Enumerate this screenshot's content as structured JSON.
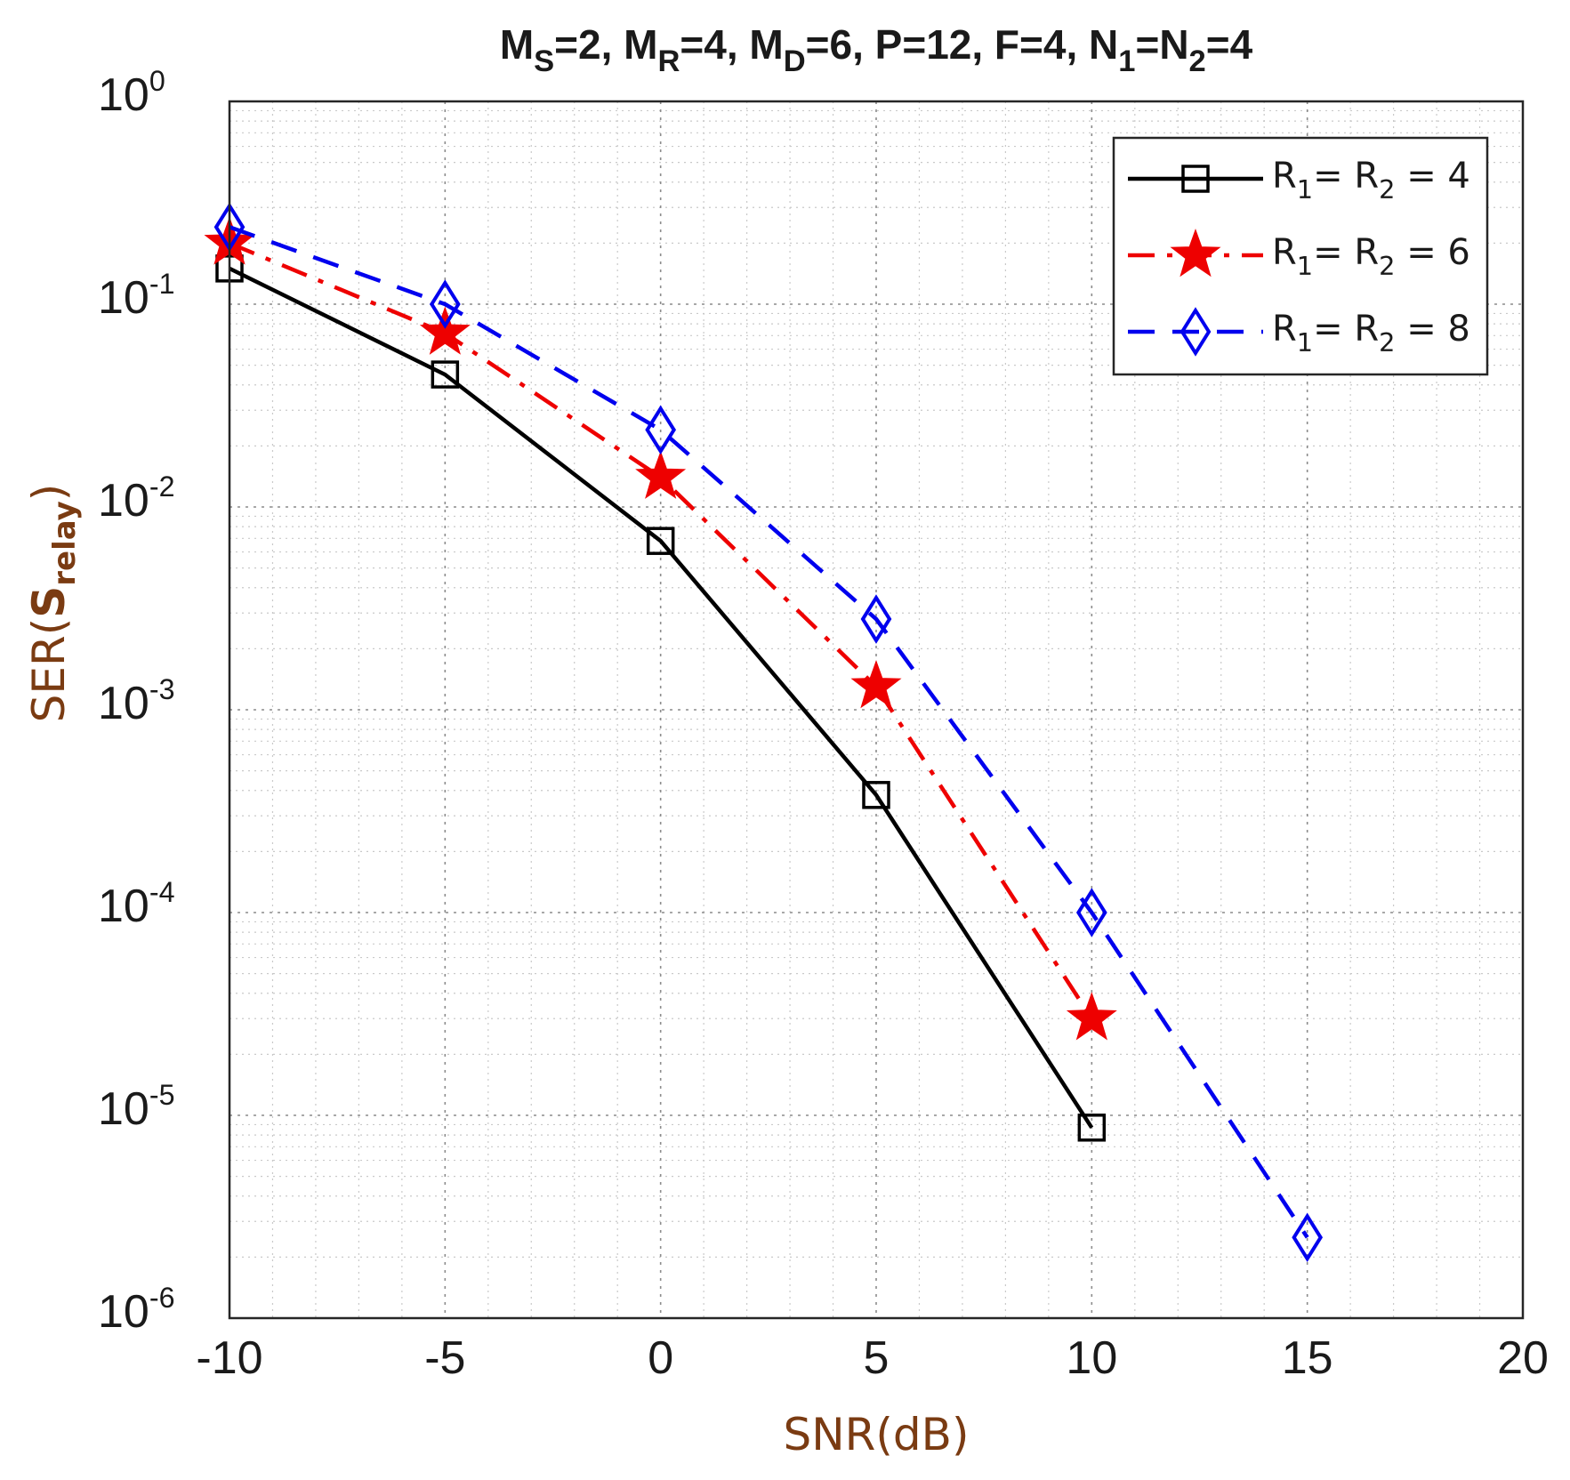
{
  "chart_data": {
    "type": "line",
    "title": {
      "parts": [
        {
          "t": "M"
        },
        {
          "t": "S",
          "sub": true
        },
        {
          "t": "=2, M"
        },
        {
          "t": "R",
          "sub": true
        },
        {
          "t": "=4, M"
        },
        {
          "t": "D",
          "sub": true
        },
        {
          "t": "=6, P=12, F=4, N"
        },
        {
          "t": "1",
          "sub": true
        },
        {
          "t": "=N"
        },
        {
          "t": "2",
          "sub": true
        },
        {
          "t": "=4"
        }
      ]
    },
    "xlabel": "SNR(dB)",
    "ylabel": {
      "parts": [
        {
          "t": "SER"
        },
        {
          "t": "("
        },
        {
          "t": "S",
          "bold": true
        },
        {
          "t": "relay",
          "sub": true,
          "bold": true
        },
        {
          "t": ")"
        }
      ]
    },
    "x_ticks": [
      "-10",
      "-5",
      "0",
      "5",
      "10",
      "15",
      "20"
    ],
    "x_tick_values": [
      -10,
      -5,
      0,
      5,
      10,
      15,
      20
    ],
    "y_ticks": [
      {
        "base": "10",
        "exp": "0"
      },
      {
        "base": "10",
        "exp": "-1"
      },
      {
        "base": "10",
        "exp": "-2"
      },
      {
        "base": "10",
        "exp": "-3"
      },
      {
        "base": "10",
        "exp": "-4"
      },
      {
        "base": "10",
        "exp": "-5"
      },
      {
        "base": "10",
        "exp": "-6"
      }
    ],
    "y_tick_exponents": [
      0,
      -1,
      -2,
      -3,
      -4,
      -5,
      -6
    ],
    "xlim": [
      -10,
      20
    ],
    "ylim": [
      1e-06,
      1
    ],
    "yscale": "log",
    "grid": true,
    "minor_grid": true,
    "legend_position": "top-right",
    "series": [
      {
        "name": "R1 = R2 = 4",
        "label_parts": [
          {
            "t": "R"
          },
          {
            "t": "1",
            "sub": true
          },
          {
            "t": "= R"
          },
          {
            "t": "2",
            "sub": true
          },
          {
            "t": " = 4"
          }
        ],
        "color": "#000000",
        "line_style": "solid",
        "marker": "square",
        "x": [
          -10,
          -5,
          0,
          5,
          10
        ],
        "y": [
          0.15,
          0.045,
          0.0068,
          0.00038,
          8.7e-06
        ]
      },
      {
        "name": "R1 = R2 = 6",
        "label_parts": [
          {
            "t": "R"
          },
          {
            "t": "1",
            "sub": true
          },
          {
            "t": "= R"
          },
          {
            "t": "2",
            "sub": true
          },
          {
            "t": " = 6"
          }
        ],
        "color": "#ee0000",
        "line_style": "dashdot",
        "marker": "star",
        "x": [
          -10,
          -5,
          0,
          5,
          10
        ],
        "y": [
          0.2,
          0.072,
          0.014,
          0.0013,
          3e-05
        ]
      },
      {
        "name": "R1 = R2 = 8",
        "label_parts": [
          {
            "t": "R"
          },
          {
            "t": "1",
            "sub": true
          },
          {
            "t": "= R"
          },
          {
            "t": "2",
            "sub": true
          },
          {
            "t": " = 8"
          }
        ],
        "color": "#0000ee",
        "line_style": "dashed",
        "marker": "diamond",
        "x": [
          -10,
          -5,
          0,
          5,
          10,
          15
        ],
        "y": [
          0.24,
          0.1,
          0.024,
          0.0028,
          0.0001,
          2.5e-06
        ]
      }
    ]
  }
}
